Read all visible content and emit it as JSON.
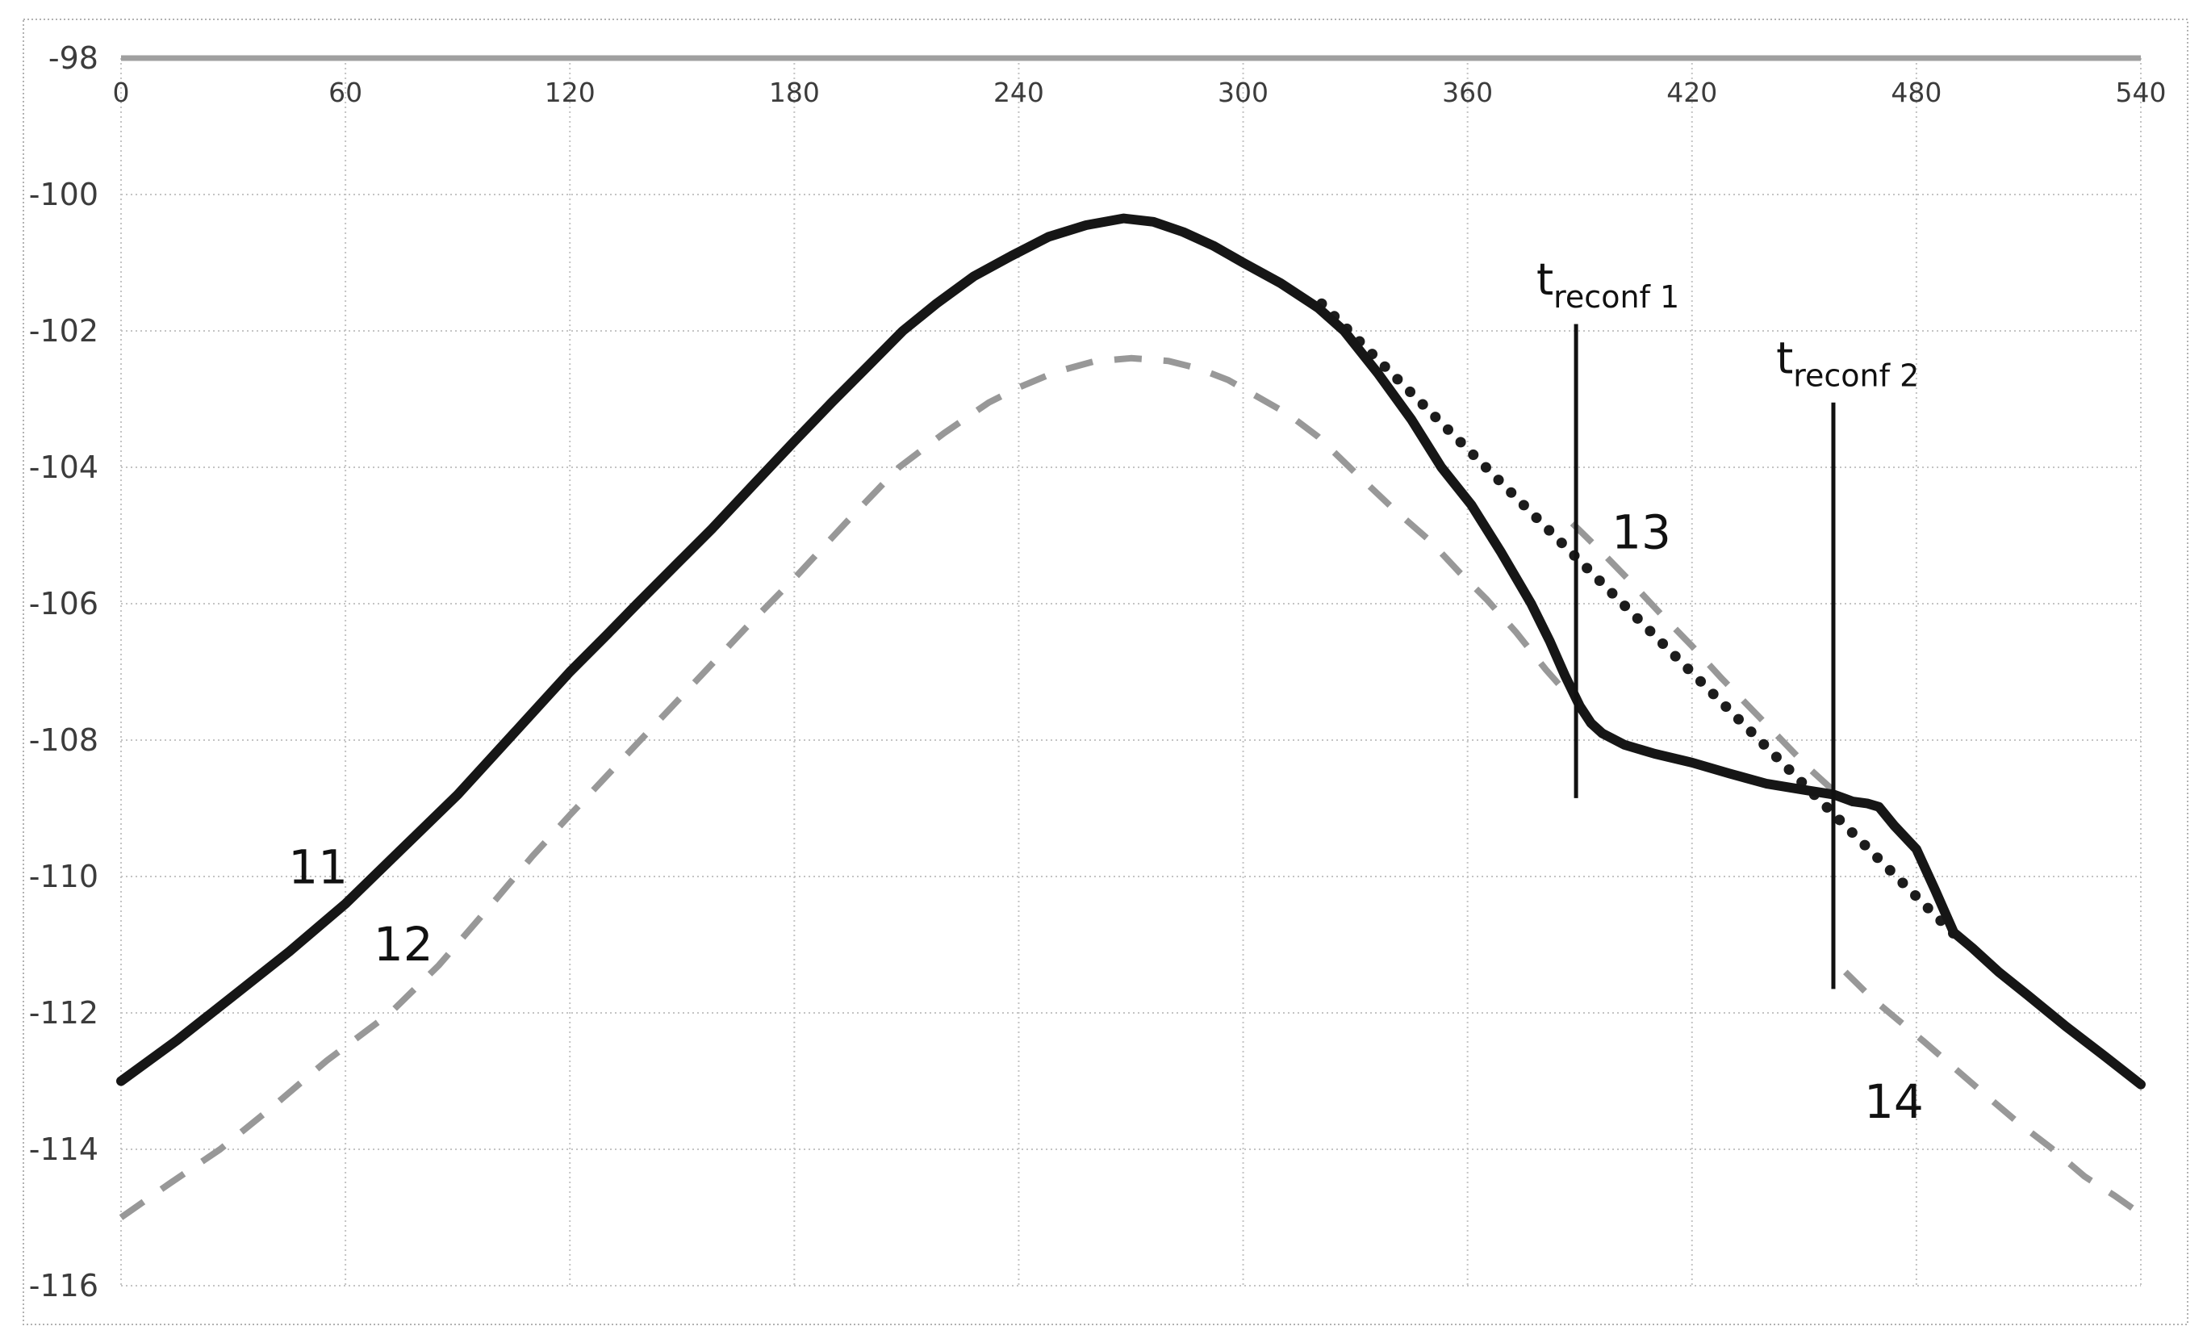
{
  "chart_data": {
    "type": "line",
    "title": "",
    "xlabel": "",
    "ylabel": "",
    "xlim": [
      0,
      540
    ],
    "ylim": [
      -116,
      -98
    ],
    "x_ticks": [
      0,
      60,
      120,
      180,
      240,
      300,
      360,
      420,
      480,
      540
    ],
    "y_ticks": [
      -98,
      -100,
      -102,
      -104,
      -106,
      -108,
      -110,
      -112,
      -114,
      -116
    ],
    "grid": true,
    "legend": "none",
    "style": {
      "grid_color": "#c4c4c4",
      "top_axis_color": "#a0a0a0",
      "border_color": "#b2b2b2",
      "tick_label_color": "#3c3c3c",
      "x_tick_font": 33,
      "y_tick_font": 38
    },
    "series": [
      {
        "name": "line-12-dashed",
        "label": "12",
        "style": "dashed",
        "color": "#989898",
        "width": 8,
        "segments": [
          [
            [
              0,
              -115.0
            ],
            [
              13,
              -114.5
            ],
            [
              26.5,
              -114.0
            ],
            [
              40,
              -113.4
            ],
            [
              55,
              -112.7
            ],
            [
              72,
              -112.0
            ],
            [
              85,
              -111.3
            ],
            [
              100,
              -110.35
            ],
            [
              110,
              -109.7
            ],
            [
              120,
              -109.1
            ],
            [
              132,
              -108.4
            ],
            [
              144,
              -107.7
            ],
            [
              156,
              -107.0
            ],
            [
              168,
              -106.3
            ],
            [
              180,
              -105.63
            ],
            [
              194,
              -104.8
            ],
            [
              208,
              -104.0
            ],
            [
              220,
              -103.5
            ],
            [
              232,
              -103.05
            ],
            [
              240,
              -102.83
            ],
            [
              250,
              -102.6
            ],
            [
              260,
              -102.45
            ],
            [
              270,
              -102.4
            ],
            [
              280,
              -102.44
            ],
            [
              288,
              -102.55
            ],
            [
              296,
              -102.72
            ],
            [
              304,
              -102.97
            ],
            [
              312,
              -103.22
            ],
            [
              320,
              -103.55
            ],
            [
              330,
              -104.08
            ],
            [
              340,
              -104.6
            ],
            [
              350,
              -105.08
            ],
            [
              358,
              -105.55
            ],
            [
              365,
              -105.93
            ],
            [
              373,
              -106.42
            ],
            [
              381,
              -106.97
            ],
            [
              386,
              -107.28
            ]
          ],
          [
            [
              388,
              -104.82
            ],
            [
              396,
              -105.25
            ],
            [
              404,
              -105.7
            ],
            [
              412,
              -106.17
            ],
            [
              420,
              -106.62
            ],
            [
              428,
              -107.1
            ],
            [
              436,
              -107.55
            ],
            [
              444,
              -108.0
            ],
            [
              451,
              -108.4
            ],
            [
              460,
              -108.85
            ]
          ],
          [
            [
              461,
              -111.4
            ],
            [
              468,
              -111.78
            ],
            [
              475,
              -112.1
            ],
            [
              482,
              -112.42
            ],
            [
              490,
              -112.8
            ],
            [
              498,
              -113.18
            ],
            [
              507,
              -113.6
            ],
            [
              516,
              -113.98
            ],
            [
              525,
              -114.4
            ],
            [
              533,
              -114.68
            ],
            [
              540,
              -114.95
            ]
          ]
        ]
      },
      {
        "name": "line-13-dotted",
        "label": "13",
        "style": "dotted",
        "color": "#1c1c1c",
        "width": 13,
        "segments": [
          [
            [
              321,
              -101.6
            ],
            [
              490,
              -110.84
            ]
          ]
        ]
      },
      {
        "name": "line-11-solid",
        "label": "11",
        "style": "solid",
        "color": "#161616",
        "width": 12,
        "segments": [
          [
            [
              0,
              -113.0
            ],
            [
              15,
              -112.4
            ],
            [
              30,
              -111.75
            ],
            [
              45,
              -111.1
            ],
            [
              60,
              -110.4
            ],
            [
              75,
              -109.6
            ],
            [
              90,
              -108.8
            ],
            [
              105,
              -107.9
            ],
            [
              120,
              -107.0
            ],
            [
              130,
              -106.45
            ],
            [
              138,
              -106.0
            ],
            [
              148,
              -105.45
            ],
            [
              158,
              -104.9
            ],
            [
              170,
              -104.2
            ],
            [
              180,
              -103.62
            ],
            [
              190,
              -103.05
            ],
            [
              200,
              -102.5
            ],
            [
              209,
              -102.0
            ],
            [
              218,
              -101.6
            ],
            [
              228,
              -101.2
            ],
            [
              238,
              -100.9
            ],
            [
              248,
              -100.62
            ],
            [
              258,
              -100.45
            ],
            [
              268,
              -100.35
            ],
            [
              276,
              -100.4
            ],
            [
              284,
              -100.55
            ],
            [
              292,
              -100.75
            ],
            [
              300,
              -101.0
            ],
            [
              310,
              -101.3
            ],
            [
              320,
              -101.66
            ],
            [
              327,
              -102.0
            ],
            [
              336,
              -102.62
            ],
            [
              345,
              -103.3
            ],
            [
              353,
              -104.0
            ],
            [
              361,
              -104.55
            ],
            [
              369,
              -105.25
            ],
            [
              377,
              -106.0
            ],
            [
              382,
              -106.55
            ],
            [
              386,
              -107.05
            ],
            [
              390,
              -107.5
            ],
            [
              393,
              -107.75
            ],
            [
              396,
              -107.9
            ],
            [
              402,
              -108.07
            ],
            [
              410,
              -108.2
            ],
            [
              420,
              -108.33
            ],
            [
              430,
              -108.49
            ],
            [
              440,
              -108.64
            ],
            [
              450,
              -108.73
            ],
            [
              458,
              -108.8
            ],
            [
              463,
              -108.9
            ],
            [
              467,
              -108.93
            ],
            [
              470,
              -108.98
            ],
            [
              474,
              -109.25
            ],
            [
              480,
              -109.6
            ],
            [
              485,
              -110.2
            ],
            [
              490,
              -110.82
            ],
            [
              495,
              -111.05
            ],
            [
              502,
              -111.4
            ],
            [
              510,
              -111.75
            ],
            [
              520,
              -112.2
            ],
            [
              530,
              -112.62
            ],
            [
              540,
              -113.05
            ]
          ]
        ]
      }
    ],
    "annotations": {
      "vlines": [
        {
          "name": "t-reconf-1-line",
          "x": 389,
          "y_from": -101.9,
          "y_to": -108.85,
          "color": "#111111",
          "width": 5
        },
        {
          "name": "t-reconf-2-line",
          "x": 457.8,
          "y_from": -103.05,
          "y_to": -111.65,
          "color": "#111111",
          "width": 5
        }
      ],
      "texts": [
        {
          "name": "label-11",
          "text": "11",
          "x": 44.7,
          "y": -110.1,
          "size": 58,
          "color": "#111111"
        },
        {
          "name": "label-12",
          "text": "12",
          "x": 67.5,
          "y": -111.23,
          "size": 58,
          "color": "#111111"
        },
        {
          "name": "label-13",
          "text": "13",
          "x": 398.5,
          "y": -105.19,
          "size": 58,
          "color": "#111111"
        },
        {
          "name": "label-14",
          "text": "14",
          "x": 466.0,
          "y": -113.54,
          "size": 58,
          "color": "#111111"
        },
        {
          "name": "label-t-reconf-1",
          "text": "t",
          "sub": "reconf 1",
          "x": 378.4,
          "y": -101.47,
          "size": 54,
          "sub_size": 38,
          "color": "#111111"
        },
        {
          "name": "label-t-reconf-2",
          "text": "t",
          "sub": "reconf 2",
          "x": 442.5,
          "y": -102.62,
          "size": 54,
          "sub_size": 38,
          "color": "#111111"
        }
      ]
    }
  }
}
